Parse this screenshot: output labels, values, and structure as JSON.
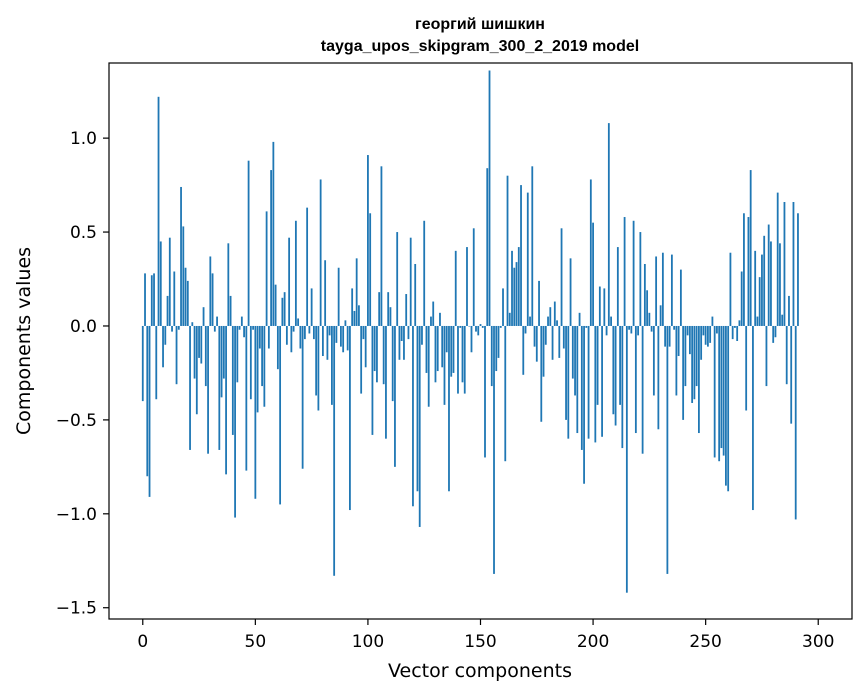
{
  "chart_data": {
    "type": "bar",
    "title": "георгий шишкин\ntayga_upos_skipgram_300_2_2019 model",
    "title_line1": "георгий шишкин",
    "title_line2": "tayga_upos_skipgram_300_2_2019 model",
    "xlabel": "Vector components",
    "ylabel": "Components values",
    "xlim": [
      -15,
      315
    ],
    "ylim": [
      -1.56,
      1.4
    ],
    "xticks": [
      0,
      50,
      100,
      150,
      200,
      250,
      300
    ],
    "xtick_labels": [
      "0",
      "50",
      "100",
      "150",
      "200",
      "250",
      "300"
    ],
    "yticks": [
      -1.5,
      -1.0,
      -0.5,
      0.0,
      0.5,
      1.0
    ],
    "ytick_labels": [
      "−1.5",
      "−1.0",
      "−0.5",
      "0.0",
      "0.5",
      "1.0"
    ],
    "bar_color": "#1f77b4",
    "grid": false,
    "legend": "none",
    "values": [
      -0.4,
      0.28,
      -0.8,
      -0.91,
      0.27,
      0.28,
      -0.39,
      1.22,
      0.45,
      -0.22,
      -0.1,
      0.16,
      0.47,
      -0.03,
      0.29,
      -0.31,
      -0.02,
      0.74,
      0.53,
      0.31,
      0.24,
      -0.66,
      0.02,
      -0.28,
      -0.47,
      -0.17,
      -0.2,
      0.1,
      -0.32,
      -0.68,
      0.37,
      0.28,
      -0.03,
      0.05,
      -0.66,
      -0.38,
      -0.28,
      -0.79,
      0.44,
      0.16,
      -0.58,
      -1.02,
      -0.3,
      -0.02,
      0.05,
      -0.06,
      -0.77,
      0.88,
      -0.39,
      -0.02,
      -0.92,
      -0.46,
      -0.12,
      -0.32,
      -0.43,
      0.61,
      -0.12,
      0.83,
      0.98,
      0.22,
      -0.23,
      -0.95,
      0.15,
      0.18,
      -0.1,
      0.47,
      -0.14,
      -0.03,
      0.56,
      0.04,
      -0.12,
      -0.76,
      -0.07,
      0.63,
      -0.04,
      0.2,
      -0.07,
      -0.37,
      -0.45,
      0.78,
      -0.16,
      0.35,
      -0.18,
      -0.05,
      -0.42,
      -1.33,
      -0.09,
      0.31,
      -0.11,
      -0.14,
      0.03,
      -0.13,
      -0.98,
      0.2,
      0.08,
      0.36,
      0.11,
      -0.36,
      -0.07,
      -0.22,
      0.91,
      0.6,
      -0.58,
      -0.24,
      -0.3,
      0.18,
      0.85,
      -0.31,
      -0.6,
      0.18,
      0.1,
      -0.4,
      -0.75,
      0.5,
      -0.18,
      -0.08,
      -0.18,
      0.17,
      -0.07,
      0.47,
      -0.96,
      0.33,
      -0.88,
      -1.07,
      -0.1,
      0.56,
      -0.25,
      -0.43,
      0.05,
      0.13,
      -0.3,
      -0.24,
      0.07,
      -0.22,
      -0.42,
      -0.14,
      -0.88,
      -0.27,
      -0.25,
      0.4,
      -0.36,
      -0.01,
      -0.3,
      -0.36,
      0.42,
      0.0,
      -0.14,
      0.52,
      -0.03,
      -0.05,
      0.01,
      -0.01,
      -0.7,
      0.84,
      1.36,
      -0.32,
      -1.32,
      -0.24,
      -0.17,
      -0.01,
      0.2,
      -0.72,
      0.8,
      0.07,
      0.4,
      0.31,
      0.34,
      0.42,
      0.75,
      -0.26,
      -0.04,
      0.71,
      0.05,
      0.85,
      -0.11,
      -0.19,
      0.24,
      -0.51,
      -0.27,
      -0.1,
      0.05,
      0.1,
      -0.18,
      0.13,
      0.03,
      -0.17,
      0.52,
      -0.12,
      -0.5,
      -0.6,
      0.36,
      -0.28,
      -0.37,
      -0.57,
      0.07,
      -0.66,
      -0.84,
      -0.01,
      -0.6,
      0.78,
      0.55,
      -0.62,
      -0.42,
      0.21,
      -0.59,
      0.2,
      -0.05,
      1.08,
      0.05,
      -0.47,
      -0.53,
      0.42,
      -0.42,
      -0.65,
      0.58,
      -1.42,
      -0.02,
      -0.04,
      0.56,
      -0.57,
      -0.05,
      0.5,
      -0.68,
      0.33,
      0.19,
      0.07,
      -0.03,
      -0.37,
      0.37,
      -0.55,
      0.11,
      0.39,
      -0.11,
      -1.32,
      -0.11,
      0.38,
      -0.02,
      -0.37,
      -0.16,
      0.3,
      -0.5,
      -0.32,
      -0.05,
      -0.15,
      -0.41,
      -0.39,
      -0.32,
      -0.57,
      -0.18,
      -0.05,
      -0.1,
      -0.11,
      -0.09,
      0.05,
      -0.7,
      -0.04,
      -0.72,
      -0.65,
      -0.69,
      -0.85,
      -0.88,
      0.39,
      -0.07,
      -0.01,
      -0.08,
      0.03,
      0.29,
      0.6,
      -0.45,
      0.58,
      0.83,
      -0.98,
      0.4,
      0.05,
      0.26,
      0.38,
      0.48,
      -0.32,
      0.54,
      0.45,
      -0.09,
      -0.06,
      0.71,
      0.44,
      0.06,
      0.66,
      -0.31,
      0.16,
      -0.52,
      0.66,
      -1.03,
      0.6
    ]
  }
}
